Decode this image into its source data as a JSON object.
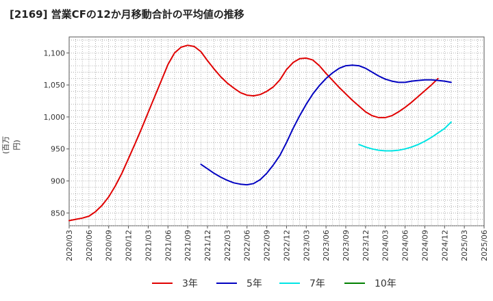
{
  "chart_data": {
    "type": "line",
    "title": "[2169]  営業CFの12か月移動合計の平均値の推移",
    "ylabel": "(百万円)",
    "xlabel": "",
    "ylim": [
      830,
      1125
    ],
    "yticks": [
      850,
      900,
      950,
      1000,
      1050,
      1100
    ],
    "ytick_labels": [
      "850",
      "900",
      "950",
      "1,000",
      "1,050",
      "1,100"
    ],
    "xticks": [
      "2020/03",
      "2020/06",
      "2020/09",
      "2020/12",
      "2021/03",
      "2021/06",
      "2021/09",
      "2021/12",
      "2022/03",
      "2022/06",
      "2022/09",
      "2022/12",
      "2023/03",
      "2023/06",
      "2023/09",
      "2023/12",
      "2024/03",
      "2024/06",
      "2024/09",
      "2024/12",
      "2025/03",
      "2025/06"
    ],
    "grid": true,
    "legend_position": "bottom",
    "series": [
      {
        "name": "3年",
        "color": "#e00000",
        "start_index": 0,
        "values": [
          838,
          840,
          842,
          845,
          852,
          862,
          875,
          892,
          912,
          935,
          958,
          982,
          1007,
          1032,
          1057,
          1082,
          1100,
          1109,
          1112,
          1110,
          1102,
          1088,
          1075,
          1063,
          1053,
          1045,
          1038,
          1034,
          1033,
          1035,
          1040,
          1047,
          1058,
          1074,
          1085,
          1091,
          1092,
          1089,
          1080,
          1068,
          1057,
          1046,
          1036,
          1026,
          1017,
          1008,
          1002,
          999,
          999,
          1002,
          1008,
          1015,
          1023,
          1032,
          1041,
          1050,
          1060
        ]
      },
      {
        "name": "5年",
        "color": "#0000c0",
        "start_index": 20,
        "values": [
          926,
          919,
          912,
          906,
          901,
          897,
          895,
          894,
          896,
          902,
          912,
          925,
          940,
          960,
          982,
          1002,
          1020,
          1036,
          1049,
          1060,
          1069,
          1076,
          1080,
          1081,
          1080,
          1076,
          1070,
          1064,
          1059,
          1056,
          1054,
          1054,
          1056,
          1057,
          1058,
          1058,
          1057,
          1056,
          1054
        ]
      },
      {
        "name": "7年",
        "color": "#00e5e5",
        "start_index": 44,
        "values": [
          957,
          953,
          950,
          948,
          947,
          947,
          948,
          950,
          953,
          957,
          962,
          968,
          975,
          982,
          992
        ]
      },
      {
        "name": "10年",
        "color": "#008000",
        "start_index": 0,
        "values": []
      }
    ]
  }
}
